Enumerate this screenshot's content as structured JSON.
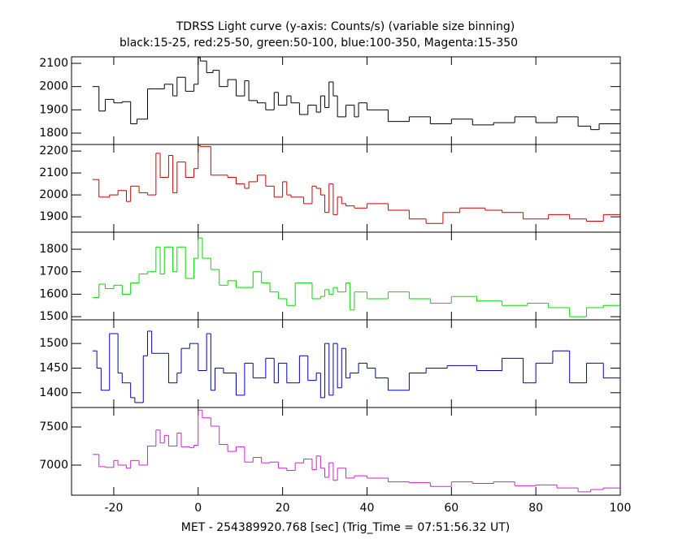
{
  "chart_data": [
    {
      "type": "histogram",
      "title": "TDRSS Light curve (y-axis: Counts/s) (variable size binning)",
      "subtitle": "black:15-25, red:25-50, green:50-100, blue:100-350, Magenta:15-350",
      "color": "#000000",
      "xlim": [
        -30,
        100
      ],
      "xticks": [
        -20,
        0,
        20,
        40,
        60,
        80,
        100
      ],
      "ylim": [
        1751,
        2128
      ],
      "yticks": [
        1800,
        1900,
        2000,
        2100
      ],
      "bins": [
        -25,
        -23.5,
        -22,
        -20,
        -18,
        -16,
        -14.5,
        -12,
        -10,
        -8,
        -6,
        -5,
        -3,
        -1,
        0,
        0.5,
        2,
        3.5,
        5,
        7,
        9,
        11,
        12,
        14,
        16,
        18,
        19,
        21,
        22,
        24,
        26,
        28,
        29,
        30,
        31,
        32,
        33,
        35,
        37,
        38,
        40,
        45,
        50,
        55,
        60,
        65,
        70,
        75,
        80,
        85,
        90,
        93,
        95,
        100
      ],
      "values": [
        2000,
        1895,
        1945,
        1930,
        1935,
        1840,
        1860,
        1990,
        1990,
        2010,
        1960,
        2040,
        1980,
        2010,
        2125,
        2110,
        2060,
        2070,
        2000,
        2030,
        1960,
        2025,
        1940,
        1930,
        1900,
        1975,
        1920,
        1960,
        1930,
        1880,
        1920,
        1890,
        1960,
        1910,
        2020,
        1960,
        1870,
        1920,
        1870,
        1930,
        1900,
        1850,
        1870,
        1840,
        1860,
        1835,
        1845,
        1870,
        1845,
        1870,
        1830,
        1815,
        1840
      ]
    },
    {
      "type": "histogram",
      "color": "#cc0000",
      "xlim": [
        -30,
        100
      ],
      "xticks": [
        -20,
        0,
        20,
        40,
        60,
        80,
        100
      ],
      "ylim": [
        1830,
        2230
      ],
      "yticks": [
        1900,
        2000,
        2100,
        2200
      ],
      "bins": [
        -25,
        -23.5,
        -21,
        -19,
        -17,
        -16,
        -14,
        -12,
        -10,
        -9,
        -7,
        -6,
        -5,
        -3,
        -1,
        0,
        0.5,
        3,
        7,
        9,
        11,
        12,
        14,
        16,
        18,
        20,
        21,
        22,
        25,
        27,
        28,
        29,
        30,
        31,
        32,
        33,
        34,
        35,
        37,
        40,
        45,
        50,
        54,
        58,
        62,
        68,
        72,
        77,
        83,
        88,
        92,
        96,
        100
      ],
      "values": [
        2070,
        1990,
        2000,
        2020,
        1970,
        2040,
        2010,
        2000,
        2190,
        2080,
        2180,
        2010,
        2150,
        2080,
        2120,
        2225,
        2220,
        2090,
        2080,
        2050,
        2030,
        2060,
        2090,
        2040,
        1990,
        2060,
        2000,
        1990,
        1960,
        2040,
        2030,
        2000,
        1920,
        2050,
        1910,
        1990,
        1960,
        1950,
        1940,
        1960,
        1930,
        1890,
        1870,
        1920,
        1940,
        1930,
        1920,
        1890,
        1910,
        1890,
        1880,
        1910
      ]
    },
    {
      "type": "histogram",
      "color": "#00dd00",
      "xlim": [
        -30,
        100
      ],
      "xticks": [
        -20,
        0,
        20,
        40,
        60,
        80,
        100
      ],
      "ylim": [
        1486,
        1876
      ],
      "yticks": [
        1500,
        1600,
        1700,
        1800
      ],
      "bins": [
        -25,
        -23.5,
        -22,
        -20,
        -18,
        -16,
        -14,
        -12,
        -10,
        -9,
        -8,
        -6,
        -5,
        -3,
        -1,
        0,
        1,
        3,
        5,
        7,
        9,
        11,
        13,
        15,
        17,
        19,
        21,
        23,
        25,
        27,
        29,
        30,
        31,
        32,
        33,
        35,
        36,
        37,
        40,
        45,
        50,
        55,
        60,
        66,
        72,
        78,
        83,
        88,
        92,
        96,
        100
      ],
      "values": [
        1585,
        1645,
        1625,
        1640,
        1600,
        1650,
        1690,
        1700,
        1810,
        1690,
        1810,
        1700,
        1810,
        1670,
        1760,
        1850,
        1760,
        1710,
        1640,
        1660,
        1630,
        1630,
        1700,
        1650,
        1610,
        1580,
        1550,
        1650,
        1650,
        1580,
        1590,
        1620,
        1600,
        1630,
        1610,
        1650,
        1530,
        1610,
        1580,
        1610,
        1580,
        1560,
        1590,
        1570,
        1550,
        1560,
        1540,
        1500,
        1540,
        1550
      ]
    },
    {
      "type": "histogram",
      "color": "#0000c0",
      "xlim": [
        -30,
        100
      ],
      "xticks": [
        -20,
        0,
        20,
        40,
        60,
        80,
        100
      ],
      "ylim": [
        1370,
        1548
      ],
      "yticks": [
        1400,
        1450,
        1500
      ],
      "bins": [
        -25,
        -24,
        -23,
        -21,
        -19,
        -18,
        -16,
        -15,
        -13,
        -12,
        -11,
        -9,
        -7,
        -5,
        -4,
        -2,
        0,
        2,
        3,
        4,
        6,
        9,
        11,
        13,
        16,
        18,
        19,
        21,
        24,
        26,
        28,
        29,
        30,
        31,
        32,
        33,
        34,
        35,
        36,
        38,
        40,
        42,
        45,
        50,
        54,
        59,
        66,
        72,
        77,
        80,
        84,
        88,
        92,
        96,
        100
      ],
      "values": [
        1485,
        1450,
        1405,
        1520,
        1440,
        1420,
        1390,
        1380,
        1475,
        1525,
        1480,
        1480,
        1420,
        1440,
        1490,
        1500,
        1445,
        1520,
        1405,
        1450,
        1440,
        1395,
        1460,
        1430,
        1470,
        1420,
        1460,
        1420,
        1475,
        1425,
        1440,
        1390,
        1500,
        1395,
        1500,
        1410,
        1490,
        1430,
        1440,
        1460,
        1450,
        1430,
        1405,
        1440,
        1450,
        1455,
        1445,
        1470,
        1420,
        1460,
        1485,
        1420,
        1460,
        1430
      ]
    },
    {
      "type": "histogram",
      "color": "#d020d0",
      "xlim": [
        -30,
        100
      ],
      "xticks": [
        -20,
        0,
        20,
        40,
        60,
        80,
        100
      ],
      "ylim": [
        6606,
        7755
      ],
      "yticks": [
        7000,
        7500
      ],
      "xlabel": "MET - 254389920.768 [sec] (Trig_Time = 07:51:56.32 UT)",
      "bins": [
        -25,
        -23.5,
        -22,
        -20,
        -19,
        -17,
        -16,
        -14,
        -12,
        -10,
        -9,
        -8,
        -7,
        -5,
        -4,
        -2,
        -1,
        0,
        1,
        3,
        5,
        7,
        9,
        11,
        13,
        15,
        17,
        19,
        21,
        23,
        25,
        27,
        28,
        29,
        30,
        31,
        32,
        33,
        35,
        37,
        40,
        45,
        50,
        55,
        60,
        65,
        70,
        75,
        80,
        85,
        90,
        93,
        96,
        100
      ],
      "values": [
        7140,
        6980,
        6970,
        7060,
        7000,
        6960,
        7060,
        7000,
        7250,
        7460,
        7290,
        7390,
        7250,
        7420,
        7240,
        7230,
        7260,
        7720,
        7620,
        7510,
        7270,
        7180,
        7240,
        7040,
        7100,
        7030,
        7040,
        6960,
        6930,
        7030,
        7080,
        6940,
        7120,
        6960,
        6840,
        7030,
        6800,
        6960,
        6830,
        6860,
        6830,
        6780,
        6770,
        6720,
        6780,
        6760,
        6780,
        6730,
        6740,
        6700,
        6650,
        6680,
        6700
      ]
    }
  ]
}
